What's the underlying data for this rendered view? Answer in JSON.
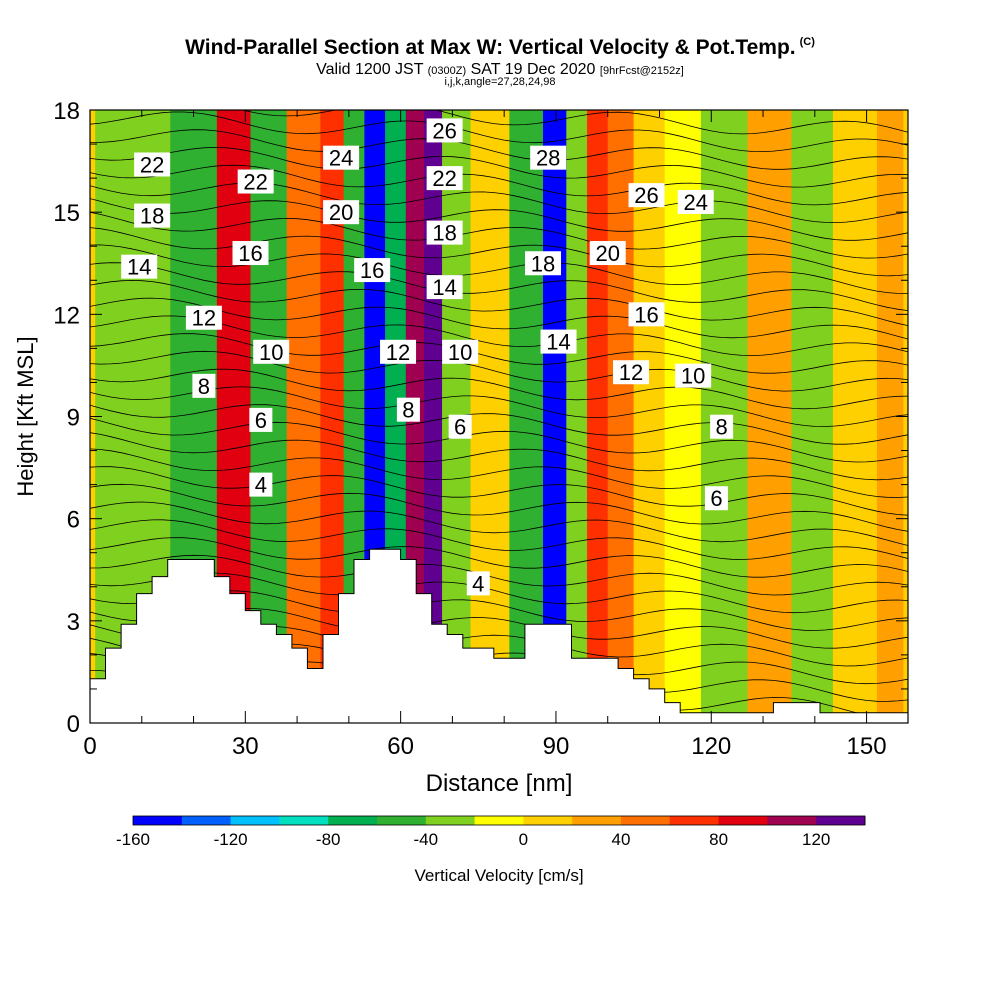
{
  "header": {
    "title": "Wind-Parallel Section at Max W: Vertical Velocity & Pot.Temp.",
    "copyright": "(C)",
    "valid_prefix": "Valid 1200 JST",
    "valid_utc": "(0300Z)",
    "valid_date": "SAT 19 Dec 2020",
    "forecast": "[9hrFcst@2152z]",
    "indices": "i,j,k,angle=27,28,24,98"
  },
  "chart_data": {
    "type": "heatmap",
    "xlabel": "Distance [nm]",
    "ylabel": "Height [Kft MSL]",
    "xlim": [
      0,
      158
    ],
    "ylim": [
      0,
      18
    ],
    "xticks": [
      0,
      30,
      60,
      90,
      120,
      150
    ],
    "yticks": [
      0,
      3,
      6,
      9,
      12,
      15,
      18
    ],
    "colorbar": {
      "label": "Vertical Velocity [cm/s]",
      "ticks": [
        -160,
        -120,
        -80,
        -40,
        0,
        40,
        80,
        120
      ],
      "bounds": [
        -160,
        140
      ],
      "step": 20,
      "colors": [
        "#0000ff",
        "#0060ff",
        "#00c0ff",
        "#00e0c0",
        "#00b050",
        "#30b030",
        "#80d020",
        "#ffff00",
        "#ffd000",
        "#ffa000",
        "#ff7000",
        "#ff3000",
        "#e00010",
        "#a00050",
        "#600090"
      ]
    },
    "vertical_velocity_bands": [
      {
        "x": 2,
        "w": -40
      },
      {
        "x": 10,
        "w": -30
      },
      {
        "x": 21,
        "w": -45
      },
      {
        "x": 28,
        "w": 90
      },
      {
        "x": 34,
        "w": -50
      },
      {
        "x": 42,
        "w": 50
      },
      {
        "x": 47,
        "w": 60
      },
      {
        "x": 51,
        "w": -60
      },
      {
        "x": 55,
        "w": -150
      },
      {
        "x": 59,
        "w": -80
      },
      {
        "x": 63,
        "w": 100
      },
      {
        "x": 66,
        "w": 130
      },
      {
        "x": 70,
        "w": -40
      },
      {
        "x": 77,
        "w": 10
      },
      {
        "x": 85,
        "w": -60
      },
      {
        "x": 90,
        "w": -150
      },
      {
        "x": 94,
        "w": -30
      },
      {
        "x": 98,
        "w": 70
      },
      {
        "x": 102,
        "w": 40
      },
      {
        "x": 108,
        "w": 10
      },
      {
        "x": 114,
        "w": -20
      },
      {
        "x": 122,
        "w": -40
      },
      {
        "x": 132,
        "w": 20
      },
      {
        "x": 139,
        "w": -30
      },
      {
        "x": 148,
        "w": 10
      },
      {
        "x": 156,
        "w": 20
      }
    ],
    "theta_contour_labels": [
      {
        "x": 12,
        "y": 16.4,
        "text": "22"
      },
      {
        "x": 12,
        "y": 14.9,
        "text": "18"
      },
      {
        "x": 9.5,
        "y": 13.4,
        "text": "14"
      },
      {
        "x": 22,
        "y": 11.9,
        "text": "12"
      },
      {
        "x": 22,
        "y": 9.9,
        "text": "8"
      },
      {
        "x": 32,
        "y": 15.9,
        "text": "22"
      },
      {
        "x": 31,
        "y": 13.8,
        "text": "16"
      },
      {
        "x": 35,
        "y": 10.9,
        "text": "10"
      },
      {
        "x": 33,
        "y": 8.9,
        "text": "6"
      },
      {
        "x": 33,
        "y": 7.0,
        "text": "4"
      },
      {
        "x": 48.5,
        "y": 16.6,
        "text": "24"
      },
      {
        "x": 48.5,
        "y": 15.0,
        "text": "20"
      },
      {
        "x": 54.5,
        "y": 13.3,
        "text": "16"
      },
      {
        "x": 59.5,
        "y": 10.9,
        "text": "12"
      },
      {
        "x": 61.5,
        "y": 9.2,
        "text": "8"
      },
      {
        "x": 68.5,
        "y": 17.4,
        "text": "26"
      },
      {
        "x": 68.5,
        "y": 16.0,
        "text": "22"
      },
      {
        "x": 68.5,
        "y": 14.4,
        "text": "18"
      },
      {
        "x": 68.5,
        "y": 12.8,
        "text": "14"
      },
      {
        "x": 71.5,
        "y": 10.9,
        "text": "10"
      },
      {
        "x": 71.5,
        "y": 8.7,
        "text": "6"
      },
      {
        "x": 75,
        "y": 4.1,
        "text": "4"
      },
      {
        "x": 88.5,
        "y": 16.6,
        "text": "28"
      },
      {
        "x": 87.5,
        "y": 13.5,
        "text": "18"
      },
      {
        "x": 90.5,
        "y": 11.2,
        "text": "14"
      },
      {
        "x": 100,
        "y": 13.8,
        "text": "20"
      },
      {
        "x": 107.5,
        "y": 15.5,
        "text": "26"
      },
      {
        "x": 107.5,
        "y": 12.0,
        "text": "16"
      },
      {
        "x": 104.5,
        "y": 10.3,
        "text": "12"
      },
      {
        "x": 116.5,
        "y": 10.2,
        "text": "10"
      },
      {
        "x": 117,
        "y": 15.3,
        "text": "24"
      },
      {
        "x": 122,
        "y": 8.7,
        "text": "8"
      },
      {
        "x": 121,
        "y": 6.6,
        "text": "6"
      }
    ],
    "terrain_profile": {
      "x": [
        0,
        3,
        3,
        6,
        6,
        9,
        9,
        12,
        12,
        15,
        15,
        18,
        18,
        21,
        21,
        24,
        24,
        27,
        27,
        30,
        30,
        33,
        33,
        36,
        36,
        39,
        39,
        42,
        42,
        45,
        45,
        48,
        48,
        51,
        51,
        54,
        54,
        57,
        57,
        60,
        60,
        63,
        63,
        66,
        66,
        69,
        69,
        72,
        72,
        75,
        75,
        78,
        78,
        81,
        81,
        84,
        84,
        87,
        87,
        90,
        90,
        93,
        93,
        96,
        96,
        99,
        99,
        102,
        102,
        105,
        105,
        108,
        108,
        111,
        111,
        114,
        114,
        117,
        117,
        120,
        120,
        123,
        123,
        126,
        126,
        129,
        129,
        132,
        132,
        135,
        135,
        138,
        138,
        141,
        141,
        144,
        144,
        147,
        147,
        150,
        150,
        158
      ],
      "y": [
        1.3,
        1.3,
        2.2,
        2.2,
        2.9,
        2.9,
        3.8,
        3.8,
        4.3,
        4.3,
        4.8,
        4.8,
        4.8,
        4.8,
        4.8,
        4.8,
        4.3,
        4.3,
        3.8,
        3.8,
        3.3,
        3.3,
        2.9,
        2.9,
        2.6,
        2.6,
        2.2,
        2.2,
        1.6,
        1.6,
        2.6,
        2.6,
        3.8,
        3.8,
        4.8,
        4.8,
        5.1,
        5.1,
        5.1,
        5.1,
        4.8,
        4.8,
        3.8,
        3.8,
        2.9,
        2.9,
        2.6,
        2.6,
        2.2,
        2.2,
        2.2,
        2.2,
        1.9,
        1.9,
        1.9,
        1.9,
        2.9,
        2.9,
        2.9,
        2.9,
        2.9,
        2.9,
        1.9,
        1.9,
        1.9,
        1.9,
        1.9,
        1.9,
        1.6,
        1.6,
        1.3,
        1.3,
        1.0,
        1.0,
        0.6,
        0.6,
        0.3,
        0.3,
        0.3,
        0.3,
        0.3,
        0.3,
        0.3,
        0.3,
        0.3,
        0.3,
        0.3,
        0.3,
        0.6,
        0.6,
        0.6,
        0.6,
        0.6,
        0.6,
        0.3,
        0.3,
        0.3,
        0.3,
        0.3,
        0.3,
        0.3,
        0.3
      ]
    }
  }
}
